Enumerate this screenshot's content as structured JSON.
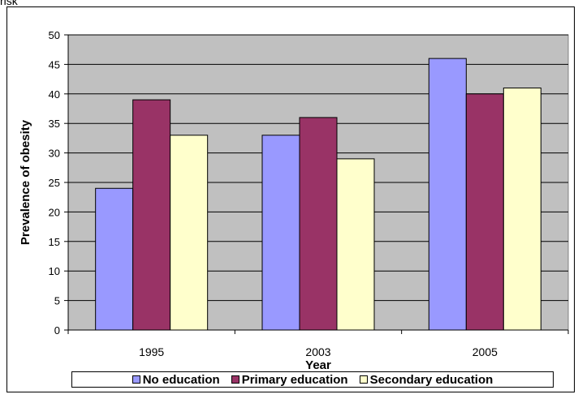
{
  "page": {
    "caption": "risk"
  },
  "chart_data": {
    "type": "bar",
    "title": "",
    "xlabel": "Year",
    "ylabel": "Prevalence of obesity",
    "categories": [
      "1995",
      "2003",
      "2005"
    ],
    "ylim": [
      0,
      50
    ],
    "yticks": [
      0,
      5,
      10,
      15,
      20,
      25,
      30,
      35,
      40,
      45,
      50
    ],
    "grid": true,
    "legend_position": "bottom",
    "series": [
      {
        "name": "No education",
        "values": [
          24,
          33,
          46
        ],
        "color": "#9999ff"
      },
      {
        "name": "Primary education",
        "values": [
          39,
          36,
          40
        ],
        "color": "#993366"
      },
      {
        "name": "Secondary education",
        "values": [
          33,
          29,
          41
        ],
        "color": "#ffffcc"
      }
    ],
    "plot_background": "#c0c0c0"
  }
}
